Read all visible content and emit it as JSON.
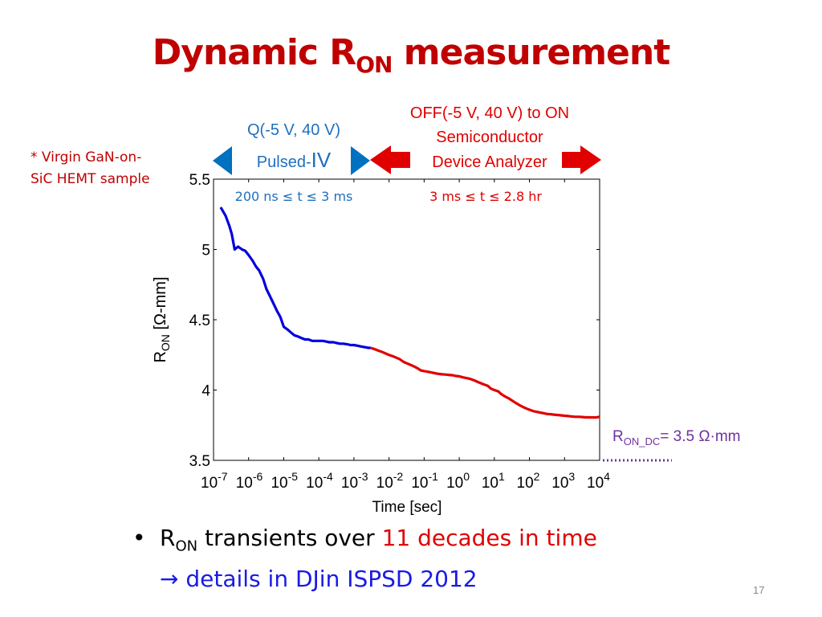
{
  "title": {
    "main": "Dynamic R",
    "sub": "ON",
    "rest": " measurement"
  },
  "note": {
    "line1": "* Virgin GaN-on-",
    "line2": "SiC HEMT sample"
  },
  "pulsed": {
    "line1": "Q(-5 V, 40 V)",
    "line2a": "Pulsed-",
    "line2b": "IV",
    "range": "200 ns ≤ t ≤ 3 ms",
    "color": "#0070c0"
  },
  "analyzer": {
    "line1": "OFF(-5 V, 40 V) to ON",
    "line2": "Semiconductor",
    "line3": "Device Analyzer",
    "range": "3 ms ≤ t ≤ 2.8 hr",
    "color": "#e00000"
  },
  "ron_dc": {
    "main": "R",
    "sub": "ON_DC",
    "value": "= 3.5 Ω·mm",
    "y": 3.5,
    "color": "#7030a0"
  },
  "bullet": {
    "prefix": "R",
    "sub": "ON",
    "text1": " transients over ",
    "highlight": "11 decades in time",
    "line2": "→ details in DJin ISPSD 2012"
  },
  "page_number": "17",
  "chart_data": {
    "type": "line",
    "xlabel": "Time [sec]",
    "ylabel": "R",
    "ylabel_sub": "ON",
    "ylabel_unit": " [Ω-mm]",
    "x_scale": "log",
    "xlim": [
      1e-07,
      10000
    ],
    "ylim": [
      3.5,
      5.5
    ],
    "x_tick_exponents": [
      "-7",
      "-6",
      "-5",
      "-4",
      "-3",
      "-2",
      "-1",
      "0",
      "1",
      "2",
      "3",
      "4"
    ],
    "x_tick_base": "10",
    "y_ticks": [
      "3.5",
      "4",
      "4.5",
      "5",
      "5.5"
    ],
    "y_tick_values": [
      3.5,
      4,
      4.5,
      5,
      5.5
    ],
    "series": [
      {
        "color": "#0000dd",
        "x": [
          1.6e-07,
          2.2e-07,
          2.8e-07,
          3.3e-07,
          4e-07,
          5e-07,
          6.5e-07,
          8e-07,
          1e-06,
          1.3e-06,
          1.6e-06,
          2e-06,
          2.6e-06,
          3.2e-06,
          4e-06,
          5e-06,
          6.5e-06,
          8e-06,
          1e-05,
          1.3e-05,
          1.6e-05,
          2e-05,
          2.6e-05,
          3.2e-05,
          4e-05,
          5e-05,
          6.5e-05,
          8e-05,
          0.0001,
          0.00013,
          0.00016,
          0.0002,
          0.00026,
          0.00032,
          0.0004,
          0.0005,
          0.00065,
          0.0008,
          0.001,
          0.0013,
          0.0016,
          0.002,
          0.0026,
          0.003
        ],
        "y": [
          5.3,
          5.24,
          5.17,
          5.11,
          5.0,
          5.02,
          5.0,
          4.99,
          4.96,
          4.92,
          4.88,
          4.85,
          4.79,
          4.72,
          4.67,
          4.62,
          4.56,
          4.52,
          4.45,
          4.43,
          4.41,
          4.39,
          4.38,
          4.37,
          4.36,
          4.36,
          4.35,
          4.35,
          4.35,
          4.35,
          4.345,
          4.34,
          4.34,
          4.335,
          4.33,
          4.33,
          4.325,
          4.32,
          4.32,
          4.315,
          4.31,
          4.305,
          4.3,
          4.3
        ]
      },
      {
        "color": "#e00000",
        "x": [
          0.003,
          0.004,
          0.005,
          0.0065,
          0.008,
          0.01,
          0.013,
          0.016,
          0.02,
          0.026,
          0.032,
          0.04,
          0.05,
          0.065,
          0.08,
          0.1,
          0.13,
          0.16,
          0.2,
          0.26,
          0.32,
          0.4,
          0.5,
          0.65,
          0.8,
          1,
          1.3,
          1.6,
          2,
          2.6,
          3.2,
          4,
          5,
          6.5,
          8,
          10,
          13,
          16,
          20,
          26,
          32,
          40,
          50,
          65,
          80,
          100,
          130,
          160,
          200,
          260,
          320,
          400,
          500,
          650,
          800,
          1000,
          1300,
          1600,
          2000,
          2600,
          3200,
          4000,
          5000,
          6500,
          8000,
          10000
        ],
        "y": [
          4.3,
          4.29,
          4.28,
          4.27,
          4.26,
          4.25,
          4.24,
          4.23,
          4.22,
          4.2,
          4.19,
          4.18,
          4.17,
          4.155,
          4.14,
          4.135,
          4.13,
          4.125,
          4.12,
          4.115,
          4.112,
          4.11,
          4.108,
          4.105,
          4.1,
          4.098,
          4.09,
          4.085,
          4.08,
          4.07,
          4.06,
          4.05,
          4.04,
          4.03,
          4.01,
          4.0,
          3.99,
          3.97,
          3.955,
          3.94,
          3.925,
          3.91,
          3.895,
          3.88,
          3.87,
          3.86,
          3.85,
          3.845,
          3.84,
          3.835,
          3.83,
          3.828,
          3.825,
          3.822,
          3.82,
          3.817,
          3.815,
          3.812,
          3.81,
          3.81,
          3.808,
          3.806,
          3.806,
          3.805,
          3.805,
          3.81
        ]
      }
    ]
  }
}
